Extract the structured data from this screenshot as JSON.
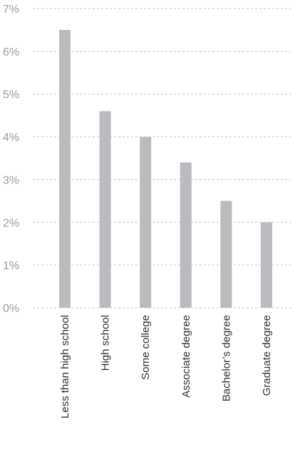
{
  "chart_data": {
    "type": "bar",
    "title": "",
    "xlabel": "",
    "ylabel": "",
    "categories": [
      "Less than high school",
      "High school",
      "Some college",
      "Associate degree",
      "Bachelor’s degree",
      "Graduate degree"
    ],
    "values": [
      6.5,
      4.6,
      4.0,
      3.4,
      2.5,
      2.0
    ],
    "ylim": [
      0,
      7
    ],
    "y_ticks": [
      0,
      1,
      2,
      3,
      4,
      5,
      6,
      7
    ],
    "y_tick_labels": [
      "0%",
      "1%",
      "2%",
      "3%",
      "4%",
      "5%",
      "6%",
      "7%"
    ],
    "grid": true,
    "legend": "none",
    "bar_color": "#b9bbbf",
    "grid_color": "#c4c6ca",
    "tick_label_color": "#9a9ca0",
    "category_label_color": "#2f3033"
  }
}
